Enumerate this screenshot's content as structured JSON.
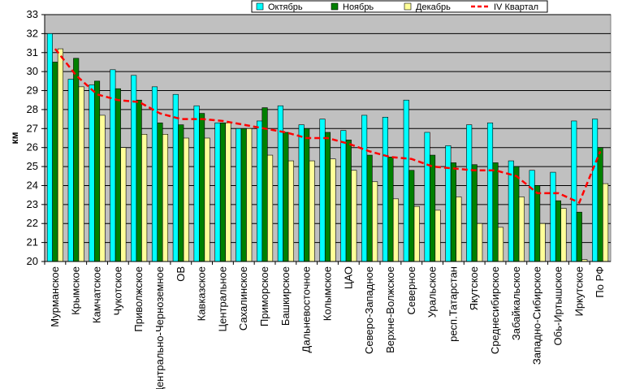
{
  "chart_data": {
    "type": "bar",
    "ylabel": "км",
    "ylim": [
      20,
      33
    ],
    "yticks": [
      20,
      21,
      22,
      23,
      24,
      25,
      26,
      27,
      28,
      29,
      30,
      31,
      32,
      33
    ],
    "grid": true,
    "legend_position": "top-right",
    "categories": [
      "Мурманское",
      "Крымское",
      "Камчатское",
      "Чукотское",
      "Приволжское",
      "Центрально-Черноземное",
      "ОВ",
      "Кавказское",
      "Центральное",
      "Сахалинское",
      "Приморское",
      "Башкирское",
      "Дальневосточное",
      "Колымское",
      "ЦАО",
      "Северо-Западное",
      "Верхне-Волжское",
      "Северное",
      "Уральское",
      "респ.Татарстан",
      "Якутское",
      "Среднесибирское",
      "Забайкальское",
      "Западно-Сибирское",
      "Обь-Иртышское",
      "Иркутское",
      "По РФ"
    ],
    "series": [
      {
        "name": "Октябрь",
        "color": "#00ffff",
        "type": "bar",
        "values": [
          32.0,
          29.6,
          29.3,
          30.1,
          29.8,
          29.2,
          28.8,
          28.2,
          27.3,
          27.0,
          27.4,
          28.2,
          27.2,
          27.5,
          26.9,
          27.7,
          27.6,
          28.5,
          26.8,
          26.1,
          27.2,
          27.3,
          25.3,
          24.8,
          24.7,
          27.4,
          27.5
        ]
      },
      {
        "name": "Ноябрь",
        "color": "#008000",
        "type": "bar",
        "values": [
          30.5,
          30.7,
          29.5,
          29.1,
          28.5,
          27.3,
          27.2,
          27.8,
          27.3,
          27.0,
          28.1,
          26.8,
          27.0,
          26.8,
          26.4,
          25.6,
          25.5,
          24.8,
          25.6,
          25.2,
          25.1,
          25.2,
          25.0,
          24.0,
          23.2,
          22.6,
          26.0
        ]
      },
      {
        "name": "Декабрь",
        "color": "#ffff99",
        "type": "bar",
        "values": [
          31.2,
          29.2,
          27.7,
          26.0,
          26.7,
          26.7,
          26.5,
          26.5,
          27.3,
          27.0,
          25.6,
          25.3,
          25.3,
          25.4,
          24.8,
          24.2,
          23.3,
          22.9,
          22.7,
          23.4,
          22.0,
          21.8,
          23.4,
          22.0,
          22.8,
          20.1,
          24.1
        ]
      },
      {
        "name": "IV Квартал",
        "color": "#ff0000",
        "type": "line",
        "values": [
          31.2,
          29.8,
          28.8,
          28.5,
          28.4,
          27.8,
          27.5,
          27.5,
          27.4,
          27.2,
          27.0,
          26.8,
          26.5,
          26.5,
          26.2,
          25.8,
          25.5,
          25.4,
          25.0,
          24.9,
          24.8,
          24.8,
          24.5,
          23.6,
          23.6,
          23.1,
          25.8
        ]
      }
    ]
  }
}
